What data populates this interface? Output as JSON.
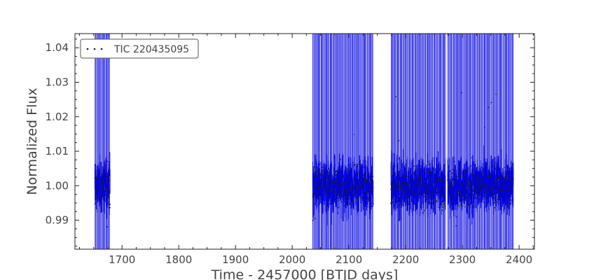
{
  "chart_data": {
    "type": "scatter",
    "title": "",
    "xlabel": "Time - 2457000 [BTJD days]",
    "ylabel": "Normalized Flux",
    "xlim": [
      1617,
      2427
    ],
    "ylim": [
      0.9816,
      1.0441
    ],
    "xticks": [
      1700,
      1800,
      1900,
      2000,
      2100,
      2200,
      2300,
      2400
    ],
    "yticks": [
      0.99,
      1.0,
      1.01,
      1.02,
      1.03,
      1.04
    ],
    "ytick_labels": [
      "0.99",
      "1.00",
      "1.01",
      "1.02",
      "1.03",
      "1.04"
    ],
    "grid": false,
    "legend": {
      "position": "top-left",
      "entries": [
        "TIC 220435095"
      ]
    },
    "colors": {
      "errorbar": "#0000e0",
      "points": "#1a1a2e",
      "axes": "#222222",
      "text": "#444444"
    },
    "series": [
      {
        "name": "TIC 220435095",
        "marker": "dot",
        "errorbars": true,
        "segments": [
          {
            "start": 1652,
            "end": 1679,
            "flux_center": 1.0,
            "flux_scatter": 0.006,
            "errorbar_extends_off_axes": true
          },
          {
            "start": 2036,
            "end": 2143,
            "flux_center": 1.0,
            "flux_scatter": 0.006,
            "errorbar_extends_off_axes": true
          },
          {
            "start": 2174,
            "end": 2270,
            "flux_center": 1.0,
            "flux_scatter": 0.006,
            "errorbar_extends_off_axes": true
          },
          {
            "start": 2274,
            "end": 2390,
            "flux_center": 1.0,
            "flux_scatter": 0.006,
            "errorbar_extends_off_axes": true
          }
        ]
      }
    ]
  }
}
